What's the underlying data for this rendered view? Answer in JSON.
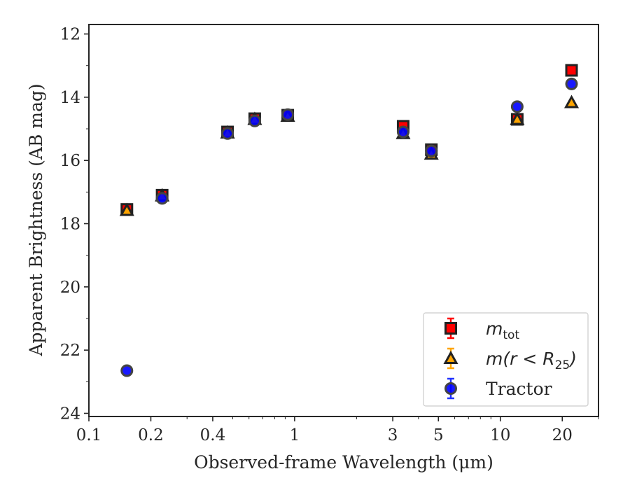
{
  "chart_data": {
    "type": "scatter",
    "title": "",
    "xlabel": "Observed-frame Wavelength (μm)",
    "ylabel": "Apparent Brightness (AB mag)",
    "xscale": "log",
    "yinverted": true,
    "xlim": [
      0.1,
      30
    ],
    "ylim": [
      24.1,
      11.7
    ],
    "xticks": [
      {
        "value": 0.1,
        "label": "0.1"
      },
      {
        "value": 0.2,
        "label": "0.2"
      },
      {
        "value": 0.4,
        "label": "0.4"
      },
      {
        "value": 1,
        "label": "1"
      },
      {
        "value": 3,
        "label": "3"
      },
      {
        "value": 5,
        "label": "5"
      },
      {
        "value": 10,
        "label": "10"
      },
      {
        "value": 20,
        "label": "20"
      }
    ],
    "yticks": [
      {
        "value": 12,
        "label": "12"
      },
      {
        "value": 14,
        "label": "14"
      },
      {
        "value": 16,
        "label": "16"
      },
      {
        "value": 18,
        "label": "18"
      },
      {
        "value": 20,
        "label": "20"
      },
      {
        "value": 22,
        "label": "22"
      },
      {
        "value": 24,
        "label": "24"
      }
    ],
    "legend_position": "lower-right",
    "series": [
      {
        "name": "m_tot",
        "legend": {
          "base": "m",
          "sub": "tot",
          "suffix": ""
        },
        "marker": "square",
        "color": "#ff0000",
        "edge": "#222222",
        "points": [
          {
            "x": 0.153,
            "y": 17.55
          },
          {
            "x": 0.227,
            "y": 17.1
          },
          {
            "x": 0.472,
            "y": 15.1
          },
          {
            "x": 0.64,
            "y": 14.68
          },
          {
            "x": 0.926,
            "y": 14.57
          },
          {
            "x": 3.37,
            "y": 14.92
          },
          {
            "x": 4.62,
            "y": 15.66
          },
          {
            "x": 12.08,
            "y": 14.7
          },
          {
            "x": 22.19,
            "y": 13.15
          }
        ]
      },
      {
        "name": "m(r < R_25)",
        "legend": {
          "base": "m(r < R",
          "sub": "25",
          "suffix": ")"
        },
        "marker": "triangle",
        "color": "#ffa500",
        "edge": "#222222",
        "points": [
          {
            "x": 0.153,
            "y": 17.58
          },
          {
            "x": 0.227,
            "y": 17.12
          },
          {
            "x": 0.472,
            "y": 15.13
          },
          {
            "x": 0.64,
            "y": 14.7
          },
          {
            "x": 0.926,
            "y": 14.6
          },
          {
            "x": 3.37,
            "y": 15.15
          },
          {
            "x": 4.62,
            "y": 15.8
          },
          {
            "x": 12.08,
            "y": 14.7
          },
          {
            "x": 22.19,
            "y": 14.17
          }
        ]
      },
      {
        "name": "Tractor",
        "legend": {
          "base": "Tractor",
          "sub": "",
          "suffix": ""
        },
        "marker": "circle",
        "color": "#0000ff",
        "edge": "#444444",
        "points": [
          {
            "x": 0.153,
            "y": 22.65
          },
          {
            "x": 0.227,
            "y": 17.2
          },
          {
            "x": 0.472,
            "y": 15.15
          },
          {
            "x": 0.64,
            "y": 14.75
          },
          {
            "x": 0.926,
            "y": 14.55
          },
          {
            "x": 3.37,
            "y": 15.1
          },
          {
            "x": 4.62,
            "y": 15.7
          },
          {
            "x": 12.08,
            "y": 14.3
          },
          {
            "x": 22.19,
            "y": 13.58
          }
        ]
      }
    ]
  }
}
